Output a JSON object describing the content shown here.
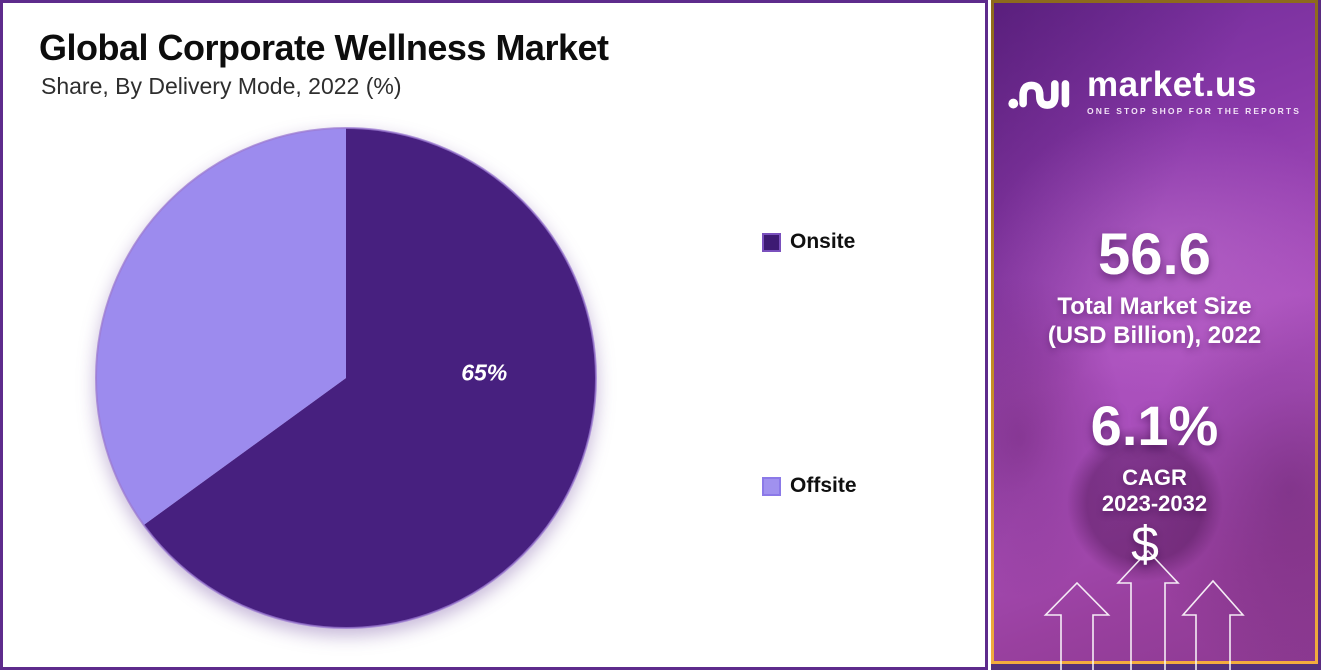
{
  "header": {
    "title": "Global Corporate Wellness Market",
    "subtitle": "Share, By Delivery Mode, 2022 (%)"
  },
  "chart_data": {
    "type": "pie",
    "title": "Global Corporate Wellness Market",
    "subtitle": "Share, By Delivery Mode, 2022 (%)",
    "unit": "%",
    "categories": [
      "Onsite",
      "Offsite"
    ],
    "values": [
      65,
      35
    ],
    "colors": [
      "#47207f",
      "#9c8bee"
    ],
    "start_angle_deg": 0,
    "direction": "clockwise",
    "legend_position": "right",
    "data_label": {
      "text": "65%",
      "slice": "Onsite",
      "x_frac": 0.77,
      "y_frac": 0.49
    }
  },
  "legend": {
    "items": [
      {
        "label": "Onsite",
        "fill": "#3d1a73",
        "border": "#7a50bd"
      },
      {
        "label": "Offsite",
        "fill": "#a091ef",
        "border": "#8b79e8"
      }
    ]
  },
  "sidebar": {
    "logo": {
      "brand": "market.us",
      "tagline": "ONE STOP SHOP FOR THE REPORTS"
    },
    "stats": [
      {
        "value": "56.6",
        "label_line1": "Total Market Size",
        "label_line2": "(USD Billion), 2022"
      },
      {
        "value": "6.1%",
        "label_line1": "CAGR",
        "label_line2": "2023-2032"
      }
    ],
    "dollar_symbol": "$"
  },
  "colors": {
    "card_border": "#5e2b8c",
    "sidebar_border_gold": "#f3ac3e",
    "slice_dark": "#47207f",
    "slice_light": "#9c8bee",
    "pie_outline": "#9b79d2"
  }
}
